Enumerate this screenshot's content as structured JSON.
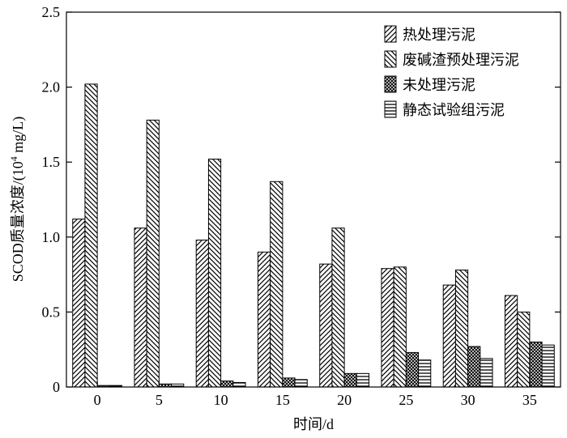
{
  "chart_data": {
    "type": "bar",
    "xlabel": "时间/d",
    "ylabel_prefix": "SCOD质量浓度/(10",
    "ylabel_sup": "4",
    "ylabel_suffix": " mg/L)",
    "ylim": [
      0,
      2.5
    ],
    "yticks": [
      0,
      0.5,
      1.0,
      1.5,
      2.0,
      2.5
    ],
    "ytick_labels": [
      "0",
      "0.5",
      "1.0",
      "1.5",
      "2.0",
      "2.5"
    ],
    "categories": [
      "0",
      "5",
      "10",
      "15",
      "20",
      "25",
      "30",
      "35"
    ],
    "grid": false,
    "legend_position": "top-right",
    "series": [
      {
        "name": "热处理污泥",
        "pattern": "diag-right",
        "values": [
          1.12,
          1.06,
          0.98,
          0.9,
          0.82,
          0.79,
          0.68,
          0.61
        ]
      },
      {
        "name": "废碱渣预处理污泥",
        "pattern": "diag-left",
        "values": [
          2.02,
          1.78,
          1.52,
          1.37,
          1.06,
          0.8,
          0.78,
          0.5
        ]
      },
      {
        "name": "未处理污泥",
        "pattern": "crosshatch",
        "values": [
          0.01,
          0.02,
          0.04,
          0.06,
          0.09,
          0.23,
          0.27,
          0.3
        ]
      },
      {
        "name": "静态试验组污泥",
        "pattern": "horizontal",
        "values": [
          0.01,
          0.02,
          0.03,
          0.05,
          0.09,
          0.18,
          0.19,
          0.28
        ]
      }
    ]
  }
}
